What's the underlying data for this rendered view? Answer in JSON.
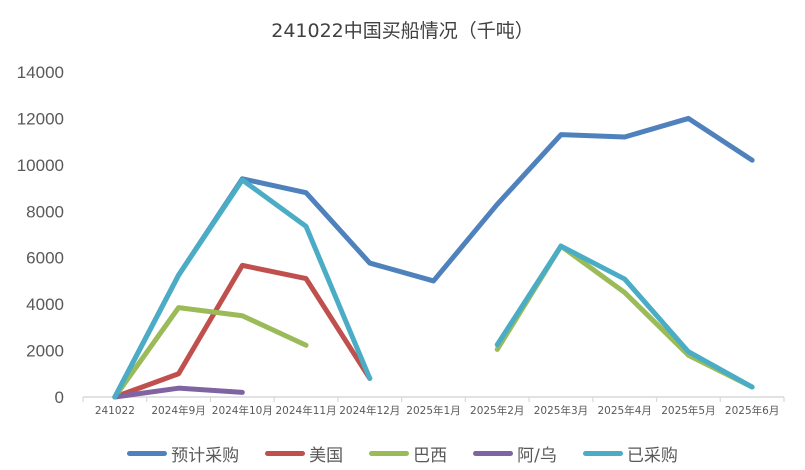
{
  "chart_data": {
    "type": "line",
    "title": "241022中国买船情况（千吨）",
    "xlabel": "",
    "ylabel": "",
    "ylim": [
      0,
      14000
    ],
    "yticks": [
      0,
      2000,
      4000,
      6000,
      8000,
      10000,
      12000,
      14000
    ],
    "grid": false,
    "legend_position": "bottom",
    "categories": [
      "241022",
      "2024年9月",
      "2024年10月",
      "2024年11月",
      "2024年12月",
      "2025年1月",
      "2025年2月",
      "2025年3月",
      "2025年4月",
      "2025年5月",
      "2025年6月"
    ],
    "series": [
      {
        "name": "预计采购",
        "color": "#4F81BD",
        "values": [
          0,
          5250,
          9400,
          8800,
          5770,
          5000,
          8300,
          11300,
          11200,
          12000,
          10200
        ]
      },
      {
        "name": "美国",
        "color": "#C0504D",
        "values": [
          0,
          1000,
          5670,
          5100,
          800,
          null,
          null,
          null,
          null,
          null,
          null
        ]
      },
      {
        "name": "巴西",
        "color": "#9BBB59",
        "values": [
          0,
          3850,
          3500,
          2230,
          null,
          null,
          2050,
          6500,
          4500,
          1800,
          430
        ]
      },
      {
        "name": "阿/乌",
        "color": "#8064A2",
        "values": [
          0,
          380,
          200,
          null,
          null,
          null,
          null,
          null,
          null,
          null,
          null
        ]
      },
      {
        "name": "已采购",
        "color": "#4BACC6",
        "values": [
          0,
          5250,
          9350,
          7350,
          800,
          null,
          2250,
          6500,
          5080,
          1950,
          430
        ]
      }
    ]
  },
  "legend": {
    "items": [
      {
        "label": "预计采购",
        "color": "#4F81BD"
      },
      {
        "label": "美国",
        "color": "#C0504D"
      },
      {
        "label": "巴西",
        "color": "#9BBB59"
      },
      {
        "label": "阿/乌",
        "color": "#8064A2"
      },
      {
        "label": "已采购",
        "color": "#4BACC6"
      }
    ]
  }
}
